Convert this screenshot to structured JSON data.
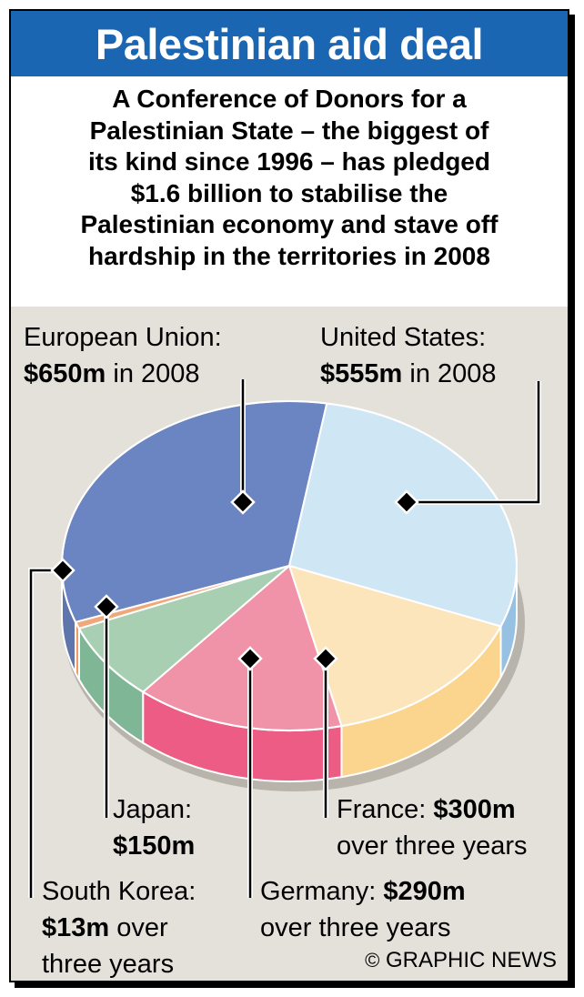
{
  "title": "Palestinian aid deal",
  "intro_lines": [
    "A Conference of Donors for a",
    "Palestinian State – the biggest of",
    "its kind since 1996 – has pledged",
    "$1.6 billion to stabilise the",
    "Palestinian economy and stave off",
    "hardship in the territories in 2008"
  ],
  "credit": "GRAPHIC NEWS",
  "credit_symbol": "©",
  "chart_data": {
    "type": "pie",
    "title": "Palestinian aid deal",
    "unit": "$m",
    "series": [
      {
        "name": "European Union",
        "value": 650,
        "value_text": "$650m",
        "period": "in 2008",
        "color": "#6b85c2",
        "side_color": "#5f76ad"
      },
      {
        "name": "United States",
        "value": 555,
        "value_text": "$555m",
        "period": "in 2008",
        "color": "#cfe6f5",
        "side_color": "#96c1e2"
      },
      {
        "name": "France",
        "value": 300,
        "value_text": "$300m",
        "period": "over three years",
        "color": "#fde5bb",
        "side_color": "#fbd48d"
      },
      {
        "name": "Germany",
        "value": 290,
        "value_text": "$290m",
        "period": "over three years",
        "color": "#f092a8",
        "side_color": "#ec5c84"
      },
      {
        "name": "Japan",
        "value": 150,
        "value_text": "$150m",
        "period": "",
        "color": "#a8cfb2",
        "side_color": "#7fb696"
      },
      {
        "name": "South Korea",
        "value": 13,
        "value_text": "$13m",
        "period": "over three years",
        "color": "#f0a87a",
        "side_color": "#e88d58"
      }
    ]
  }
}
